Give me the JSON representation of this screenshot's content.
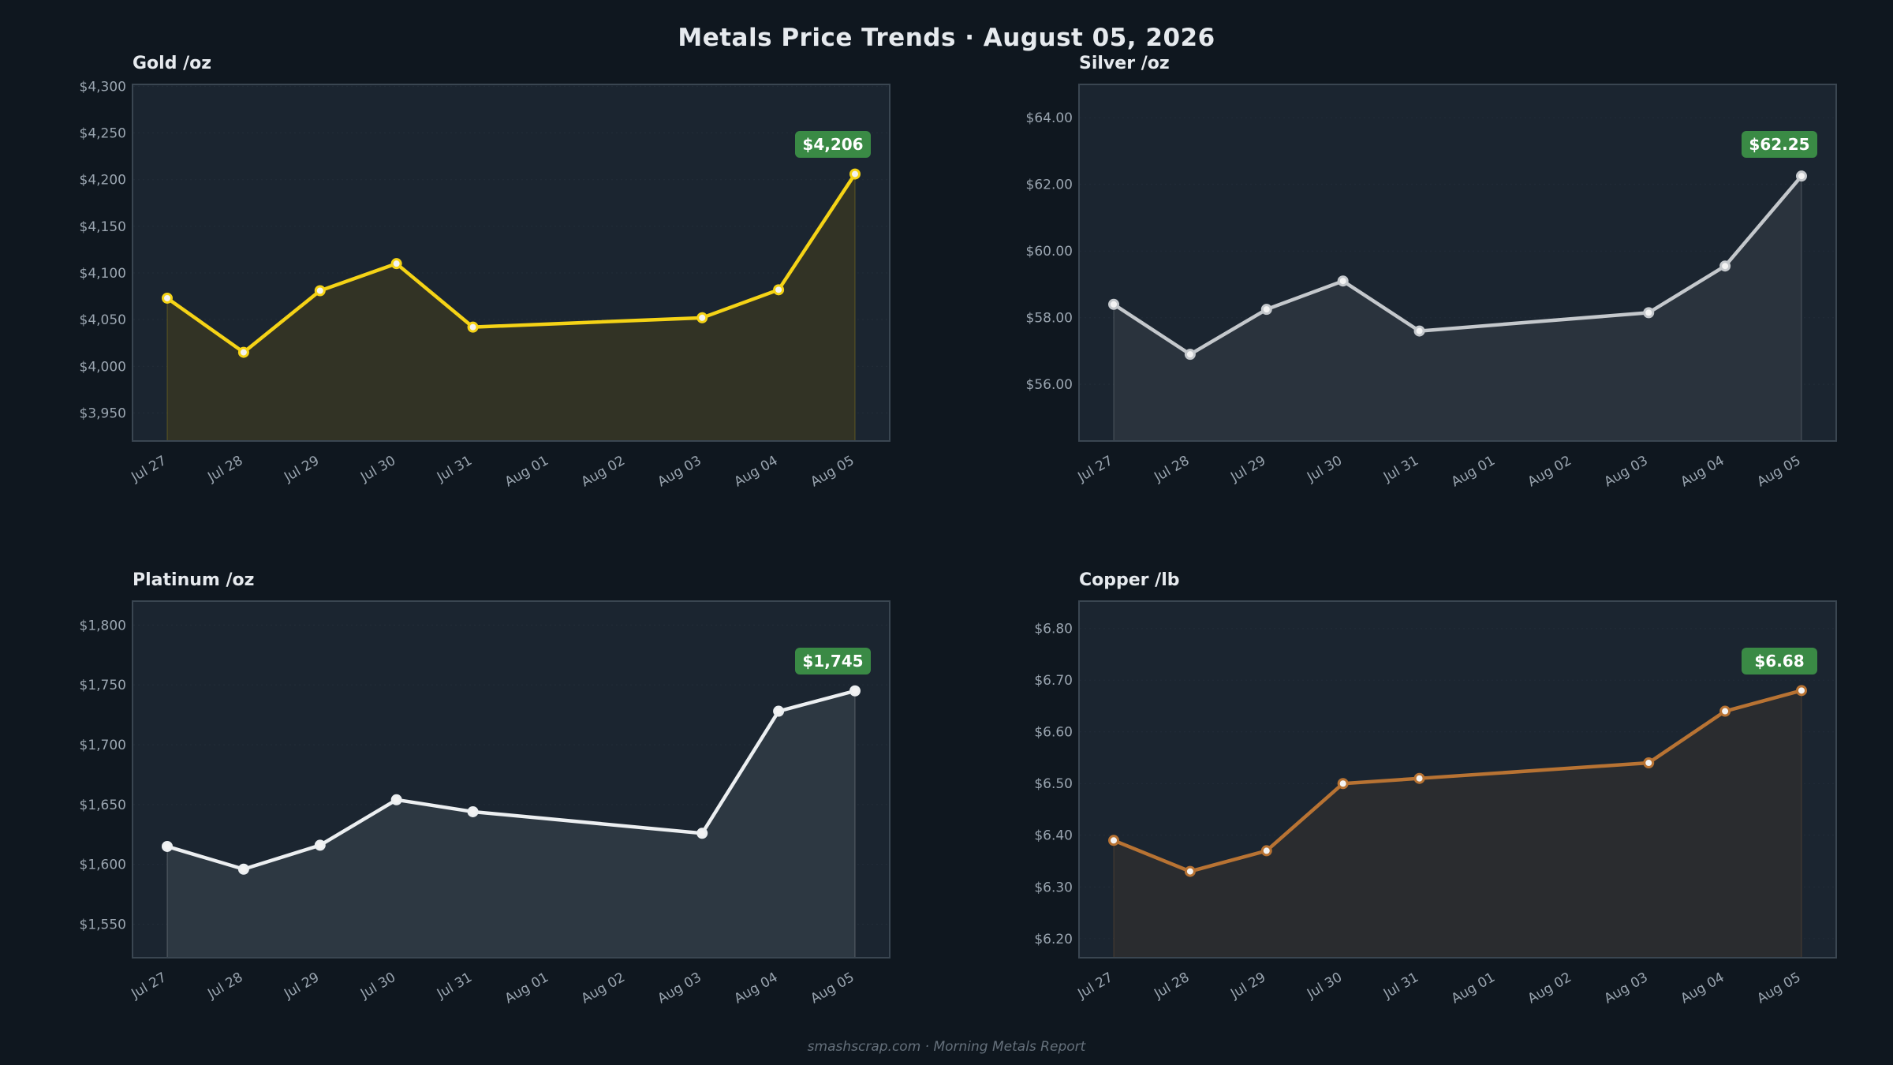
{
  "title": "Metals Price Trends  ·  August 05, 2026",
  "footer": "smashscrap.com  ·  Morning Metals Report",
  "colors": {
    "background": "#0f171f",
    "panel": "#1b2530",
    "panel_border": "#3a4651",
    "grid": "#2a3540",
    "text": "#e6eaee",
    "tick": "#9aa5b0",
    "badge": "#3a8a45"
  },
  "chart_data": [
    {
      "type": "line",
      "title": "Gold  /oz",
      "x": [
        "Jul 27",
        "Jul 28",
        "Jul 29",
        "Jul 30",
        "Jul 31",
        "Aug 01",
        "Aug 02",
        "Aug 03",
        "Aug 04",
        "Aug 05"
      ],
      "series": [
        {
          "color": "#f5d316",
          "fill": "#343425",
          "points": [
            {
              "x": "Jul 27",
              "y": 4073
            },
            {
              "x": "Jul 28",
              "y": 4015
            },
            {
              "x": "Jul 29",
              "y": 4081
            },
            {
              "x": "Jul 30",
              "y": 4110
            },
            {
              "x": "Jul 31",
              "y": 4042
            },
            {
              "x": "Aug 03",
              "y": 4052
            },
            {
              "x": "Aug 04",
              "y": 4082
            },
            {
              "x": "Aug 05",
              "y": 4206
            }
          ]
        }
      ],
      "ylim": [
        3920,
        4302
      ],
      "yticks": [
        3950,
        4000,
        4050,
        4100,
        4150,
        4200,
        4250,
        4300
      ],
      "ytick_labels": [
        "$3,950",
        "$4,000",
        "$4,050",
        "$4,100",
        "$4,150",
        "$4,200",
        "$4,250",
        "$4,300"
      ],
      "badge": "$4,206",
      "grid": true
    },
    {
      "type": "line",
      "title": "Silver  /oz",
      "x": [
        "Jul 27",
        "Jul 28",
        "Jul 29",
        "Jul 30",
        "Jul 31",
        "Aug 01",
        "Aug 02",
        "Aug 03",
        "Aug 04",
        "Aug 05"
      ],
      "series": [
        {
          "color": "#c4c8cc",
          "fill": "#2b343e",
          "points": [
            {
              "x": "Jul 27",
              "y": 58.4
            },
            {
              "x": "Jul 28",
              "y": 56.9
            },
            {
              "x": "Jul 29",
              "y": 58.25
            },
            {
              "x": "Jul 30",
              "y": 59.1
            },
            {
              "x": "Jul 31",
              "y": 57.6
            },
            {
              "x": "Aug 03",
              "y": 58.15
            },
            {
              "x": "Aug 04",
              "y": 59.55
            },
            {
              "x": "Aug 05",
              "y": 62.25
            }
          ]
        }
      ],
      "ylim": [
        54.3,
        65
      ],
      "yticks": [
        56,
        58,
        60,
        62,
        64
      ],
      "ytick_labels": [
        "$56.00",
        "$58.00",
        "$60.00",
        "$62.00",
        "$64.00"
      ],
      "badge": "$62.25",
      "grid": true
    },
    {
      "type": "line",
      "title": "Platinum  /oz",
      "x": [
        "Jul 27",
        "Jul 28",
        "Jul 29",
        "Jul 30",
        "Jul 31",
        "Aug 01",
        "Aug 02",
        "Aug 03",
        "Aug 04",
        "Aug 05"
      ],
      "series": [
        {
          "color": "#eceff1",
          "fill": "#2e3943",
          "points": [
            {
              "x": "Jul 27",
              "y": 1615
            },
            {
              "x": "Jul 28",
              "y": 1596
            },
            {
              "x": "Jul 29",
              "y": 1616
            },
            {
              "x": "Jul 30",
              "y": 1654
            },
            {
              "x": "Jul 31",
              "y": 1644
            },
            {
              "x": "Aug 03",
              "y": 1626
            },
            {
              "x": "Aug 04",
              "y": 1728
            },
            {
              "x": "Aug 05",
              "y": 1745
            }
          ]
        }
      ],
      "ylim": [
        1522,
        1820
      ],
      "yticks": [
        1550,
        1600,
        1650,
        1700,
        1750,
        1800
      ],
      "ytick_labels": [
        "$1,550",
        "$1,600",
        "$1,650",
        "$1,700",
        "$1,750",
        "$1,800"
      ],
      "badge": "$1,745",
      "grid": true
    },
    {
      "type": "line",
      "title": "Copper  /lb",
      "x": [
        "Jul 27",
        "Jul 28",
        "Jul 29",
        "Jul 30",
        "Jul 31",
        "Aug 01",
        "Aug 02",
        "Aug 03",
        "Aug 04",
        "Aug 05"
      ],
      "series": [
        {
          "color": "#b87333",
          "fill": "#2b2c2f",
          "points": [
            {
              "x": "Jul 27",
              "y": 6.39
            },
            {
              "x": "Jul 28",
              "y": 6.33
            },
            {
              "x": "Jul 29",
              "y": 6.37
            },
            {
              "x": "Jul 30",
              "y": 6.5
            },
            {
              "x": "Jul 31",
              "y": 6.51
            },
            {
              "x": "Aug 03",
              "y": 6.54
            },
            {
              "x": "Aug 04",
              "y": 6.64
            },
            {
              "x": "Aug 05",
              "y": 6.68
            }
          ]
        }
      ],
      "ylim": [
        6.163,
        6.853
      ],
      "yticks": [
        6.2,
        6.3,
        6.4,
        6.5,
        6.6,
        6.7,
        6.8
      ],
      "ytick_labels": [
        "$6.20",
        "$6.30",
        "$6.40",
        "$6.50",
        "$6.60",
        "$6.70",
        "$6.80"
      ],
      "badge": "$6.68",
      "grid": true
    }
  ]
}
